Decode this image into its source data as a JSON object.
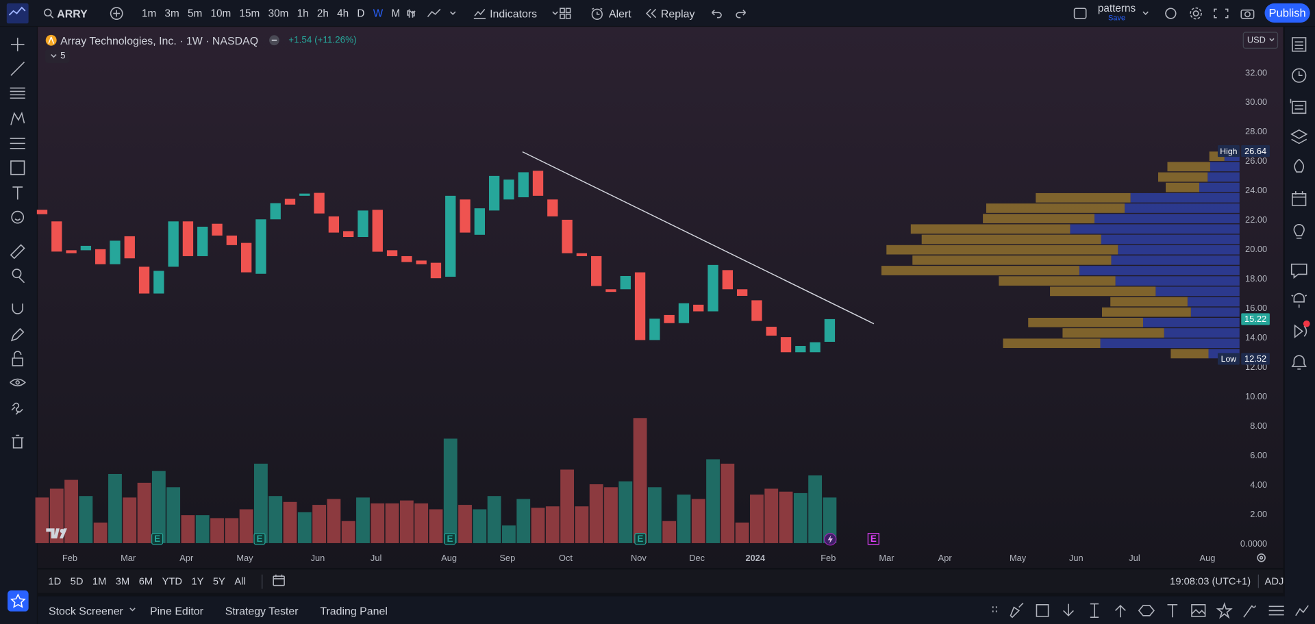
{
  "toolbar": {
    "symbol": "ARRY",
    "intervals": [
      "1m",
      "3m",
      "5m",
      "10m",
      "15m",
      "30m",
      "1h",
      "2h",
      "4h",
      "D",
      "W",
      "M"
    ],
    "active_interval": "W",
    "indicators": "Indicators",
    "alert": "Alert",
    "replay": "Replay",
    "layout_name": "patterns",
    "layout_status": "Save",
    "publish": "Publish"
  },
  "legend": {
    "title": "Array Technologies, Inc. · 1W · NASDAQ",
    "change": "+1.54 (+11.26%)",
    "indicator_count": 5
  },
  "currency": "USD",
  "events_label": "E",
  "chart_data": {
    "type": "candlestick",
    "open": [
      22.65,
      21.86,
      19.9,
      19.9,
      19.97,
      18.95,
      20.85,
      18.78,
      16.96,
      18.78,
      21.86,
      19.5,
      21.7,
      20.9,
      20.4,
      18.3,
      22.0,
      23.4,
      23.6,
      23.8,
      22.2,
      21.2,
      20.8,
      22.65,
      19.9,
      19.5,
      19.2,
      19.05,
      18.1,
      23.35,
      20.95,
      22.6,
      23.35,
      23.5,
      25.3,
      23.35,
      21.97,
      19.7,
      19.5,
      17.25,
      17.25,
      18.4,
      13.8,
      15.5,
      14.95,
      16.2,
      15.75,
      18.55,
      17.25,
      16.5,
      14.7,
      14.0,
      12.97,
      12.97,
      13.68
    ],
    "high": {
      "label": "High",
      "value": 26.64
    },
    "low": {
      "label": "Low",
      "value": 12.52
    },
    "close": [
      22.35,
      19.81,
      19.7,
      20.2,
      18.95,
      20.55,
      19.35,
      16.96,
      18.5,
      21.86,
      19.5,
      21.5,
      20.9,
      20.25,
      18.4,
      22.0,
      23.1,
      23.0,
      23.75,
      22.4,
      21.1,
      20.8,
      22.6,
      19.8,
      19.5,
      19.1,
      18.95,
      18.0,
      23.6,
      21.1,
      22.75,
      24.95,
      24.7,
      25.2,
      23.6,
      22.2,
      19.7,
      19.5,
      17.47,
      17.07,
      18.15,
      13.8,
      15.25,
      14.95,
      16.3,
      15.75,
      18.9,
      17.25,
      16.8,
      15.1,
      14.1,
      12.97,
      13.4,
      13.65,
      15.22
    ],
    "volume": [
      3.1,
      3.7,
      4.3,
      3.2,
      1.4,
      4.7,
      3.1,
      4.1,
      4.9,
      3.8,
      1.9,
      1.9,
      1.7,
      1.7,
      2.3,
      5.4,
      3.2,
      2.8,
      2.1,
      2.6,
      3.0,
      1.5,
      3.1,
      2.7,
      2.7,
      2.9,
      2.7,
      2.3,
      7.1,
      2.6,
      2.3,
      3.2,
      1.2,
      3.0,
      2.4,
      2.5,
      5.0,
      2.5,
      4.0,
      3.8,
      4.2,
      8.5,
      3.8,
      1.5,
      3.3,
      3.0,
      5.7,
      5.4,
      1.4,
      3.3,
      3.7,
      3.5,
      3.4,
      4.6,
      3.1
    ],
    "up_color": "#26a69a",
    "down_color": "#ef5350",
    "volume_up_color": "#1f6b64",
    "volume_down_color": "#8c3a3f",
    "xlim": [
      -0.3,
      82.1
    ],
    "xticks": [
      {
        "value": 1.9,
        "label": "Feb"
      },
      {
        "value": 5.9,
        "label": "Mar"
      },
      {
        "value": 9.9,
        "label": "Apr"
      },
      {
        "value": 13.9,
        "label": "May"
      },
      {
        "value": 18.9,
        "label": "Jun"
      },
      {
        "value": 22.9,
        "label": "Jul"
      },
      {
        "value": 27.9,
        "label": "Aug"
      },
      {
        "value": 31.9,
        "label": "Sep"
      },
      {
        "value": 35.9,
        "label": "Oct"
      },
      {
        "value": 40.9,
        "label": "Nov"
      },
      {
        "value": 44.9,
        "label": "Dec"
      },
      {
        "value": 48.9,
        "label": "2024"
      },
      {
        "value": 53.9,
        "label": "Feb"
      },
      {
        "value": 57.9,
        "label": "Mar"
      },
      {
        "value": 61.9,
        "label": "Apr"
      },
      {
        "value": 66.9,
        "label": "May"
      },
      {
        "value": 70.9,
        "label": "Jun"
      },
      {
        "value": 74.9,
        "label": "Jul"
      },
      {
        "value": 79.9,
        "label": "Aug"
      }
    ],
    "ylim": [
      -0.48,
      35.08
    ],
    "yticks": [
      {
        "value": 0,
        "label": "0.0000"
      },
      {
        "value": 2,
        "label": "2.00"
      },
      {
        "value": 4,
        "label": "4.00"
      },
      {
        "value": 6,
        "label": "6.00"
      },
      {
        "value": 8,
        "label": "8.00"
      },
      {
        "value": 10,
        "label": "10.00"
      },
      {
        "value": 12,
        "label": "12.00"
      },
      {
        "value": 14,
        "label": "14.00"
      },
      {
        "value": 16,
        "label": "16.00"
      },
      {
        "value": 18,
        "label": "18.00"
      },
      {
        "value": 20,
        "label": "20.00"
      },
      {
        "value": 22,
        "label": "22.00"
      },
      {
        "value": 24,
        "label": "24.00"
      },
      {
        "value": 26,
        "label": "26.00"
      },
      {
        "value": 28,
        "label": "28.00"
      },
      {
        "value": 30,
        "label": "30.00"
      },
      {
        "value": 32,
        "label": "32.00"
      }
    ],
    "grid": false,
    "last": 15.22,
    "profile": {
      "bins": [
        12.52,
        13.226,
        13.932,
        14.638,
        15.344,
        16.05,
        16.756,
        17.462,
        18.168,
        18.874,
        19.58,
        20.286,
        20.992,
        21.698,
        22.404,
        23.11,
        23.816,
        24.522,
        25.228,
        25.934,
        26.64
      ],
      "up": [
        3.7,
        16.6,
        9.0,
        11.5,
        5.8,
        6.2,
        10.0,
        14.8,
        19.1,
        15.3,
        14.5,
        16.5,
        20.2,
        17.3,
        13.7,
        13.0,
        4.8,
        3.8,
        3.5,
        1.8
      ],
      "down": [
        4.5,
        11.6,
        12.1,
        13.7,
        10.6,
        9.2,
        12.6,
        13.9,
        23.6,
        23.7,
        27.6,
        21.4,
        19.0,
        13.3,
        16.5,
        11.3,
        4.0,
        5.9,
        5.1,
        1.8
      ],
      "up_color": "#2e3d99",
      "down_color": "#8a6c2d"
    }
  },
  "ranges": [
    "1D",
    "5D",
    "1M",
    "3M",
    "6M",
    "YTD",
    "1Y",
    "5Y",
    "All"
  ],
  "clock": "19:08:03 (UTC+1)",
  "adj": "ADJ",
  "tabs": [
    "Stock Screener",
    "Pine Editor",
    "Strategy Tester",
    "Trading Panel"
  ]
}
